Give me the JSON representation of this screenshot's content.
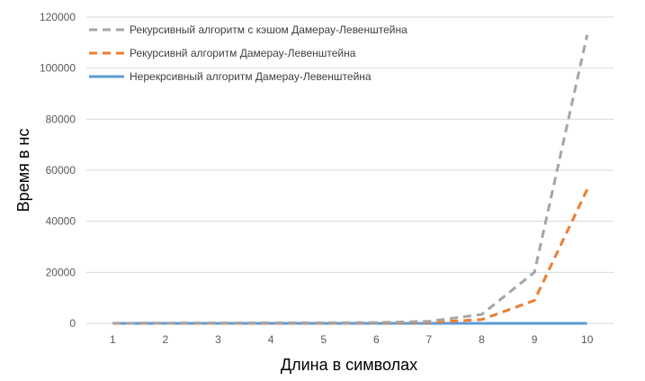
{
  "chart_data": {
    "type": "line",
    "title": "",
    "xlabel": "Длина в символах",
    "ylabel": "Время в нс",
    "categories": [
      "1",
      "2",
      "3",
      "4",
      "5",
      "6",
      "7",
      "8",
      "9",
      "10"
    ],
    "y_ticks": [
      "0",
      "20000",
      "40000",
      "60000",
      "80000",
      "100000",
      "120000"
    ],
    "ylim": [
      0,
      120000
    ],
    "grid": true,
    "legend_position": "top-left",
    "series": [
      {
        "name": "Рекурсивный алгоритм с кэшом Дамерау-Левенштейна",
        "color": "#a5a5a5",
        "style": "dashed",
        "values": [
          50,
          100,
          150,
          200,
          250,
          300,
          800,
          3500,
          20000,
          113000
        ]
      },
      {
        "name": "Рекурсивнй алгоритм Дамерау-Левенштейна",
        "color": "#ed7d31",
        "style": "dashed",
        "values": [
          10,
          20,
          40,
          60,
          90,
          150,
          400,
          1500,
          9000,
          52500
        ]
      },
      {
        "name": "Нерекрсивный алгоритм Дамерау-Левенштейна",
        "color": "#5b9bd5",
        "style": "solid",
        "values": [
          5,
          6,
          7,
          8,
          9,
          10,
          11,
          12,
          13,
          14
        ]
      }
    ]
  }
}
